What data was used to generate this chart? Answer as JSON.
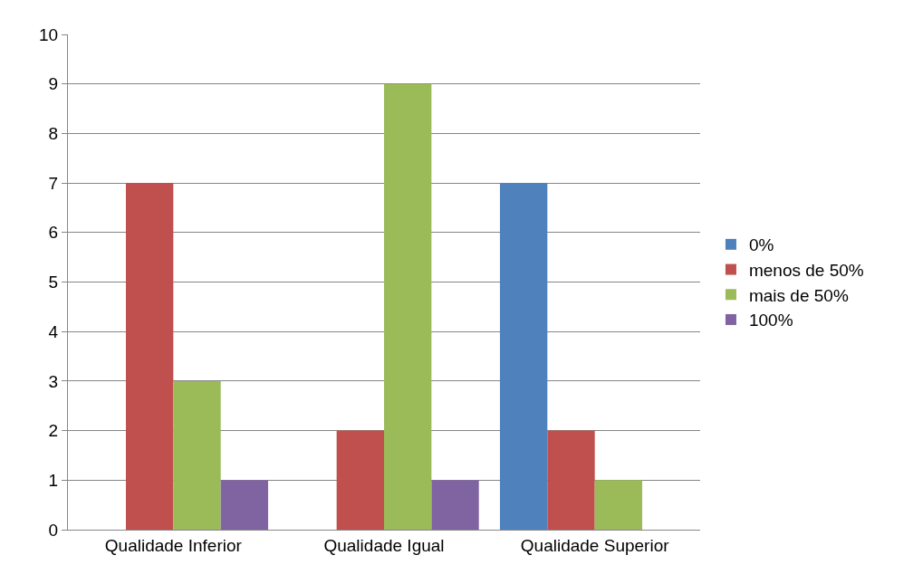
{
  "chart_data": {
    "type": "bar",
    "categories": [
      "Qualidade Inferior",
      "Qualidade Igual",
      "Qualidade Superior"
    ],
    "series": [
      {
        "name": "0%",
        "color": "#4f81bd",
        "values": [
          0,
          0,
          7
        ]
      },
      {
        "name": "menos de 50%",
        "color": "#c0504d",
        "values": [
          7,
          2,
          2
        ]
      },
      {
        "name": "mais de 50%",
        "color": "#9bbb59",
        "values": [
          3,
          9,
          1
        ]
      },
      {
        "name": "100%",
        "color": "#8064a2",
        "values": [
          1,
          1,
          0
        ]
      }
    ],
    "ylim": [
      0,
      10
    ],
    "yticks": [
      0,
      1,
      2,
      3,
      4,
      5,
      6,
      7,
      8,
      9,
      10
    ],
    "grid": "y",
    "legend": "right"
  }
}
